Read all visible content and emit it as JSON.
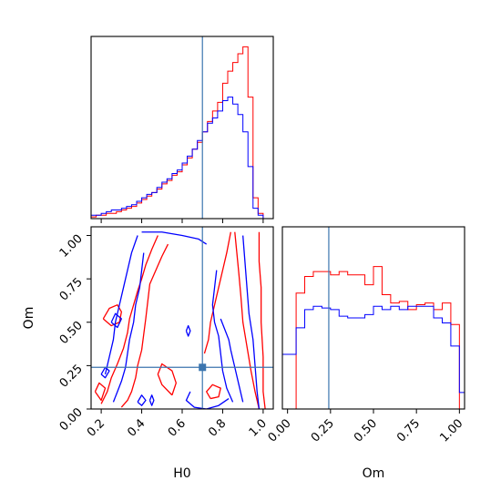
{
  "chart_data": {
    "type": "corner",
    "parameters": [
      "H0",
      "Om"
    ],
    "truth": {
      "H0": 0.7,
      "Om": 0.24
    },
    "colors": {
      "truth": "#3b75af",
      "series_a": "#ff0000",
      "series_b": "#0000ff"
    },
    "panels": [
      {
        "type": "histogram",
        "variable": "H0",
        "xlim": [
          0.15,
          1.05
        ],
        "ylim": [
          0,
          1.05
        ],
        "xlabel": "",
        "ylabel": "",
        "ytick_labels": false,
        "bin_edges": [
          0.15,
          0.175,
          0.2,
          0.225,
          0.25,
          0.275,
          0.3,
          0.325,
          0.35,
          0.375,
          0.4,
          0.425,
          0.45,
          0.475,
          0.5,
          0.525,
          0.55,
          0.575,
          0.6,
          0.625,
          0.65,
          0.675,
          0.7,
          0.725,
          0.75,
          0.775,
          0.8,
          0.825,
          0.85,
          0.875,
          0.9,
          0.925,
          0.95,
          0.975,
          1.0
        ],
        "series": [
          {
            "color": "#ff0000",
            "values": [
              0.01,
              0.02,
              0.02,
              0.03,
              0.03,
              0.04,
              0.05,
              0.06,
              0.07,
              0.09,
              0.11,
              0.13,
              0.15,
              0.17,
              0.2,
              0.22,
              0.25,
              0.27,
              0.31,
              0.35,
              0.4,
              0.44,
              0.5,
              0.56,
              0.62,
              0.67,
              0.78,
              0.85,
              0.9,
              0.95,
              0.99,
              0.7,
              0.12,
              0.03
            ]
          },
          {
            "color": "#0000ff",
            "values": [
              0.02,
              0.02,
              0.03,
              0.04,
              0.05,
              0.05,
              0.06,
              0.07,
              0.08,
              0.1,
              0.12,
              0.14,
              0.15,
              0.18,
              0.21,
              0.23,
              0.26,
              0.28,
              0.32,
              0.36,
              0.4,
              0.45,
              0.5,
              0.55,
              0.58,
              0.62,
              0.68,
              0.7,
              0.66,
              0.6,
              0.5,
              0.3,
              0.06,
              0.02
            ]
          }
        ]
      },
      {
        "type": "contour",
        "x": "H0",
        "y": "Om",
        "xlim": [
          0.15,
          1.05
        ],
        "ylim": [
          0.0,
          1.05
        ],
        "xlabel": "H0",
        "ylabel": "Om",
        "xticks": [
          0.2,
          0.4,
          0.6,
          0.8,
          1.0
        ],
        "xtick_labels": [
          "0.2",
          "0.4",
          "0.6",
          "0.8",
          "1.0"
        ],
        "yticks": [
          0.0,
          0.25,
          0.5,
          0.75,
          1.0
        ],
        "ytick_labels": [
          "0.00",
          "0.25",
          "0.50",
          "0.75",
          "1.00"
        ],
        "contours": [
          {
            "color": "#ff0000",
            "points": [
              [
                0.53,
                0.95
              ],
              [
                0.5,
                0.88
              ],
              [
                0.47,
                0.8
              ],
              [
                0.44,
                0.72
              ],
              [
                0.43,
                0.62
              ],
              [
                0.42,
                0.52
              ],
              [
                0.41,
                0.43
              ],
              [
                0.4,
                0.34
              ],
              [
                0.38,
                0.25
              ],
              [
                0.37,
                0.18
              ],
              [
                0.35,
                0.1
              ],
              [
                0.33,
                0.05
              ],
              [
                0.3,
                0.01
              ]
            ]
          },
          {
            "color": "#ff0000",
            "points": [
              [
                0.48,
                1.0
              ],
              [
                0.45,
                0.92
              ],
              [
                0.42,
                0.83
              ],
              [
                0.4,
                0.75
              ],
              [
                0.38,
                0.68
              ],
              [
                0.36,
                0.6
              ],
              [
                0.34,
                0.52
              ],
              [
                0.33,
                0.44
              ],
              [
                0.31,
                0.35
              ],
              [
                0.28,
                0.26
              ],
              [
                0.25,
                0.18
              ],
              [
                0.23,
                0.1
              ],
              [
                0.2,
                0.03
              ]
            ]
          },
          {
            "color": "#ff0000",
            "points": [
              [
                0.21,
                0.52
              ],
              [
                0.24,
                0.58
              ],
              [
                0.28,
                0.6
              ],
              [
                0.3,
                0.56
              ],
              [
                0.29,
                0.5
              ],
              [
                0.25,
                0.48
              ],
              [
                0.21,
                0.52
              ]
            ]
          },
          {
            "color": "#ff0000",
            "points": [
              [
                0.55,
                0.08
              ],
              [
                0.5,
                0.14
              ],
              [
                0.48,
                0.2
              ],
              [
                0.5,
                0.26
              ],
              [
                0.55,
                0.22
              ],
              [
                0.57,
                0.15
              ],
              [
                0.55,
                0.08
              ]
            ]
          },
          {
            "color": "#ff0000",
            "points": [
              [
                0.17,
                0.1
              ],
              [
                0.19,
                0.15
              ],
              [
                0.22,
                0.12
              ],
              [
                0.2,
                0.05
              ],
              [
                0.17,
                0.1
              ]
            ]
          },
          {
            "color": "#ff0000",
            "points": [
              [
                0.71,
                0.32
              ],
              [
                0.73,
                0.4
              ],
              [
                0.74,
                0.5
              ],
              [
                0.76,
                0.6
              ],
              [
                0.78,
                0.7
              ],
              [
                0.8,
                0.8
              ],
              [
                0.82,
                0.9
              ],
              [
                0.84,
                1.02
              ]
            ]
          },
          {
            "color": "#ff0000",
            "points": [
              [
                0.86,
                1.02
              ],
              [
                0.87,
                0.9
              ],
              [
                0.88,
                0.78
              ],
              [
                0.89,
                0.65
              ],
              [
                0.9,
                0.5
              ],
              [
                0.92,
                0.36
              ],
              [
                0.94,
                0.22
              ],
              [
                0.96,
                0.1
              ],
              [
                0.98,
                0.0
              ]
            ]
          },
          {
            "color": "#ff0000",
            "points": [
              [
                0.98,
                1.02
              ],
              [
                0.98,
                0.85
              ],
              [
                0.99,
                0.7
              ],
              [
                0.99,
                0.5
              ],
              [
                1.0,
                0.3
              ],
              [
                1.0,
                0.1
              ],
              [
                1.01,
                0.0
              ]
            ]
          },
          {
            "color": "#ff0000",
            "points": [
              [
                0.74,
                0.06
              ],
              [
                0.72,
                0.1
              ],
              [
                0.75,
                0.14
              ],
              [
                0.79,
                0.12
              ],
              [
                0.78,
                0.07
              ],
              [
                0.74,
                0.06
              ]
            ]
          },
          {
            "color": "#0000ff",
            "points": [
              [
                0.41,
                0.9
              ],
              [
                0.4,
                0.8
              ],
              [
                0.39,
                0.7
              ],
              [
                0.37,
                0.6
              ],
              [
                0.36,
                0.5
              ],
              [
                0.34,
                0.4
              ],
              [
                0.33,
                0.32
              ],
              [
                0.32,
                0.24
              ],
              [
                0.3,
                0.16
              ],
              [
                0.28,
                0.1
              ],
              [
                0.26,
                0.04
              ]
            ]
          },
          {
            "color": "#0000ff",
            "points": [
              [
                0.38,
                1.0
              ],
              [
                0.35,
                0.9
              ],
              [
                0.33,
                0.8
              ],
              [
                0.31,
                0.7
              ],
              [
                0.29,
                0.6
              ],
              [
                0.27,
                0.5
              ],
              [
                0.26,
                0.4
              ],
              [
                0.24,
                0.3
              ],
              [
                0.22,
                0.2
              ]
            ]
          },
          {
            "color": "#0000ff",
            "points": [
              [
                0.4,
                1.02
              ],
              [
                0.5,
                1.02
              ],
              [
                0.6,
                1.0
              ],
              [
                0.68,
                0.98
              ],
              [
                0.72,
                0.95
              ]
            ]
          },
          {
            "color": "#0000ff",
            "points": [
              [
                0.64,
                0.1
              ],
              [
                0.62,
                0.05
              ],
              [
                0.66,
                0.01
              ],
              [
                0.72,
                0.0
              ],
              [
                0.78,
                0.02
              ],
              [
                0.83,
                0.06
              ]
            ]
          },
          {
            "color": "#0000ff",
            "points": [
              [
                0.77,
                0.8
              ],
              [
                0.76,
                0.7
              ],
              [
                0.75,
                0.6
              ],
              [
                0.76,
                0.5
              ],
              [
                0.78,
                0.42
              ],
              [
                0.79,
                0.32
              ],
              [
                0.8,
                0.22
              ],
              [
                0.82,
                0.12
              ],
              [
                0.85,
                0.04
              ]
            ]
          },
          {
            "color": "#0000ff",
            "points": [
              [
                0.79,
                0.52
              ],
              [
                0.81,
                0.46
              ],
              [
                0.83,
                0.4
              ],
              [
                0.84,
                0.34
              ],
              [
                0.86,
                0.24
              ],
              [
                0.88,
                0.14
              ],
              [
                0.9,
                0.04
              ]
            ]
          },
          {
            "color": "#0000ff",
            "points": [
              [
                0.9,
                1.0
              ],
              [
                0.91,
                0.85
              ],
              [
                0.92,
                0.7
              ],
              [
                0.93,
                0.55
              ],
              [
                0.95,
                0.4
              ],
              [
                0.96,
                0.25
              ],
              [
                0.97,
                0.1
              ],
              [
                0.98,
                0.0
              ]
            ]
          },
          {
            "color": "#0000ff",
            "points": [
              [
                0.2,
                0.2
              ],
              [
                0.22,
                0.24
              ],
              [
                0.24,
                0.22
              ],
              [
                0.22,
                0.18
              ],
              [
                0.2,
                0.2
              ]
            ]
          },
          {
            "color": "#0000ff",
            "points": [
              [
                0.25,
                0.5
              ],
              [
                0.27,
                0.55
              ],
              [
                0.3,
                0.52
              ],
              [
                0.28,
                0.47
              ],
              [
                0.25,
                0.5
              ]
            ]
          },
          {
            "color": "#0000ff",
            "points": [
              [
                0.38,
                0.04
              ],
              [
                0.4,
                0.08
              ],
              [
                0.42,
                0.05
              ],
              [
                0.4,
                0.02
              ],
              [
                0.38,
                0.04
              ]
            ]
          },
          {
            "color": "#0000ff",
            "points": [
              [
                0.62,
                0.45
              ],
              [
                0.63,
                0.48
              ],
              [
                0.64,
                0.45
              ],
              [
                0.63,
                0.42
              ],
              [
                0.62,
                0.45
              ]
            ]
          },
          {
            "color": "#0000ff",
            "points": [
              [
                0.44,
                0.05
              ],
              [
                0.45,
                0.08
              ],
              [
                0.46,
                0.05
              ],
              [
                0.45,
                0.02
              ],
              [
                0.44,
                0.05
              ]
            ]
          }
        ]
      },
      {
        "type": "histogram",
        "variable": "Om",
        "xlim": [
          -0.03,
          1.03
        ],
        "ylim": [
          0,
          1.1
        ],
        "xlabel": "Om",
        "ylabel": "",
        "xticks": [
          0.0,
          0.25,
          0.5,
          0.75,
          1.0
        ],
        "xtick_labels": [
          "0.00",
          "0.25",
          "0.50",
          "0.75",
          "1.00"
        ],
        "bin_edges": [
          -0.03,
          0.0,
          0.05,
          0.1,
          0.15,
          0.2,
          0.25,
          0.3,
          0.35,
          0.4,
          0.45,
          0.5,
          0.55,
          0.6,
          0.65,
          0.7,
          0.75,
          0.8,
          0.85,
          0.9,
          0.95,
          1.0,
          1.03
        ],
        "series": [
          {
            "color": "#ff0000",
            "values": [
              0.0,
              0.0,
              0.7,
              0.8,
              0.83,
              0.83,
              0.81,
              0.83,
              0.81,
              0.81,
              0.75,
              0.86,
              0.69,
              0.64,
              0.65,
              0.6,
              0.63,
              0.64,
              0.6,
              0.64,
              0.51,
              0.0
            ]
          },
          {
            "color": "#0000ff",
            "values": [
              0.33,
              0.33,
              0.49,
              0.6,
              0.62,
              0.61,
              0.6,
              0.56,
              0.55,
              0.55,
              0.57,
              0.62,
              0.6,
              0.62,
              0.6,
              0.62,
              0.62,
              0.62,
              0.55,
              0.52,
              0.38,
              0.1
            ]
          }
        ]
      }
    ]
  }
}
